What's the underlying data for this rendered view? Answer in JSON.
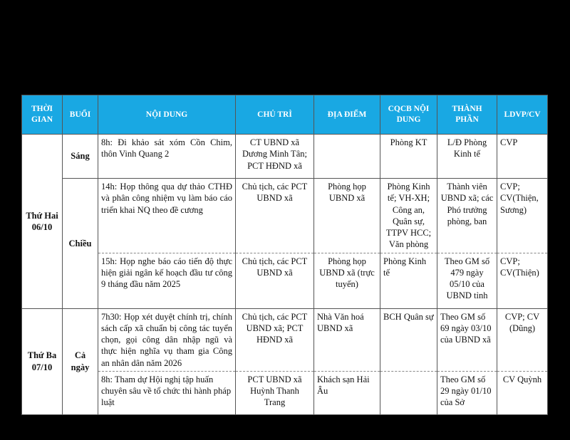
{
  "header_color": "#19a8e3",
  "headers": [
    "THỜI GIAN",
    "BUỔI",
    "NỘI DUNG",
    "CHỦ TRÌ",
    "ĐỊA ĐIỂM",
    "CQCB NỘI DUNG",
    "THÀNH PHẦN",
    "LDVP/CV"
  ],
  "days": [
    {
      "day": "Thứ Hai 06/10",
      "sessions": [
        {
          "session": "Sáng",
          "items": [
            {
              "content": "8h: Đi khảo sát xóm Cồn Chim, thôn Vinh Quang 2",
              "host": "CT UBND xã Dương Minh Tân; PCT HĐND xã",
              "location": "",
              "agency": "Phòng KT",
              "participants": "L/Đ Phòng Kinh tế",
              "staff": "CVP"
            }
          ]
        },
        {
          "session": "Chiều",
          "items": [
            {
              "content": "14h: Họp thông qua dự thảo CTHĐ và phân công nhiệm vụ làm báo cáo triển khai NQ theo đề cương",
              "host": "Chủ tịch, các PCT UBND xã",
              "location": "Phòng họp UBND xã",
              "agency": "Phòng Kinh tế; VH-XH; Công an, Quân sự, TTPV HCC; Văn phòng",
              "participants": "Thành viên UBND xã; các Phó trưởng phòng, ban",
              "staff": "CVP; CV(Thiện, Sương)"
            },
            {
              "content": "15h: Họp nghe báo cáo tiến độ thực hiện giải ngân kế hoạch đầu tư công 9 tháng đầu năm 2025",
              "host": "Chủ tịch, các PCT UBND xã",
              "location": "Phòng họp UBND xã (trực tuyến)",
              "agency": "Phòng Kinh tế",
              "participants": "Theo GM số 479 ngày 05/10 của UBND tỉnh",
              "staff": "CVP; CV(Thiện)"
            }
          ]
        }
      ]
    },
    {
      "day": "Thứ Ba 07/10",
      "sessions": [
        {
          "session": "Cả ngày",
          "items": [
            {
              "content": "7h30: Họp xét duyệt chính trị, chính sách cấp xã chuẩn bị công tác tuyển chọn, gọi công dân nhập ngũ và thực hiện nghĩa vụ tham gia Công an nhân dân năm 2026",
              "host": "Chủ tịch, các PCT UBND xã; PCT HĐND xã",
              "location": "Nhà Văn hoá UBND xã",
              "agency": "BCH Quân sự",
              "participants": "Theo GM số 69 ngày 03/10 của UBND xã",
              "staff": "CVP; CV (Dũng)"
            },
            {
              "content": "8h: Tham dự Hội nghị tập huấn chuyên sâu về tổ chức thi hành pháp luật",
              "host": "PCT UBND xã Huỳnh Thanh Trang",
              "location": "Khách sạn Hải Âu",
              "agency": "",
              "participants": "Theo GM số 29 ngày 01/10 của Sở",
              "staff": "CV Quỳnh"
            }
          ]
        }
      ]
    }
  ]
}
